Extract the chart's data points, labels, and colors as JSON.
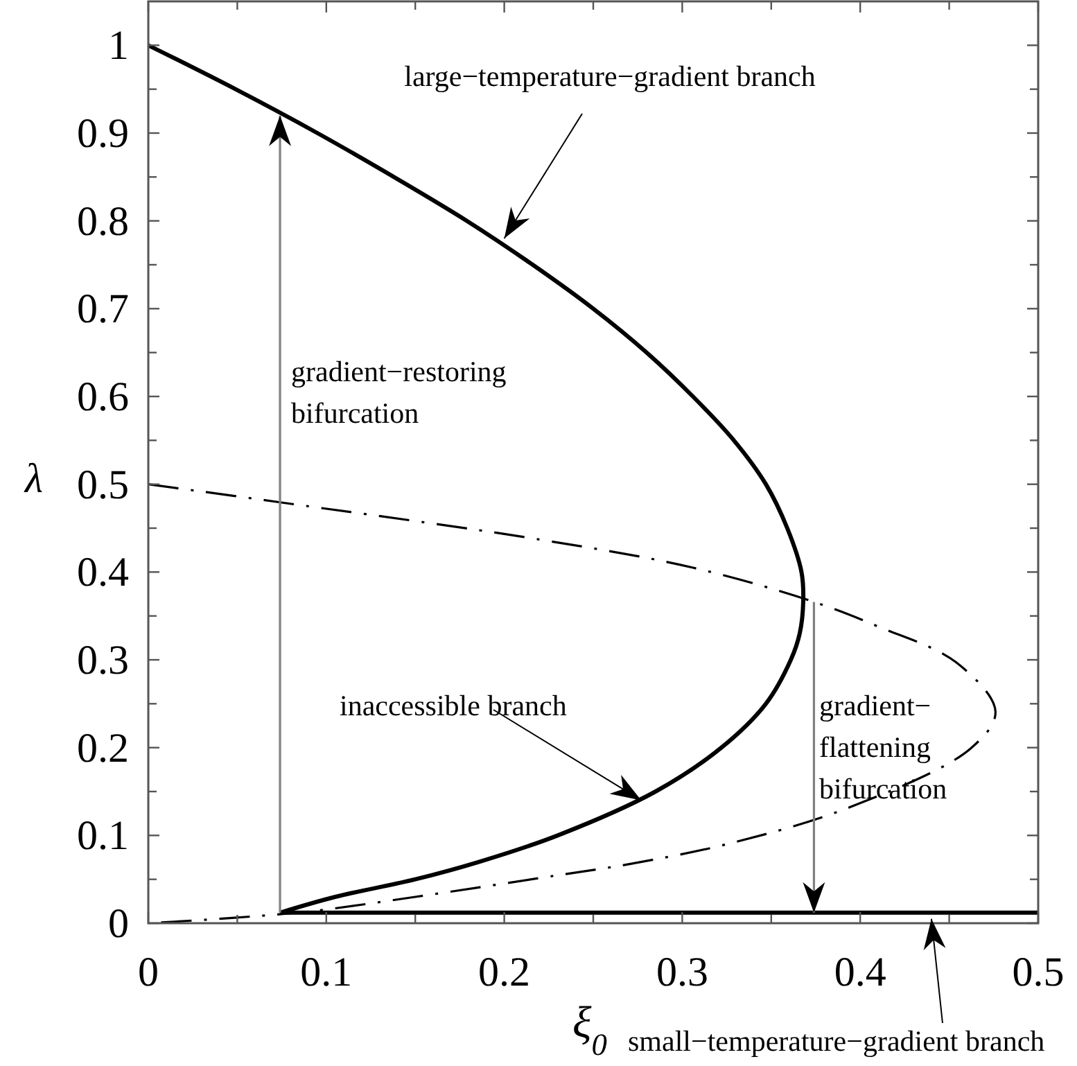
{
  "chart_data": {
    "type": "line",
    "xlabel": "ξ$_{0}$",
    "ylabel": "λ",
    "xlim": [
      0,
      0.5
    ],
    "ylim": [
      0,
      1.05
    ],
    "xticks": [
      0,
      {
        "value": 0.05,
        "label": null
      },
      0.1,
      {
        "value": 0.15,
        "label": null
      },
      0.2,
      {
        "value": 0.25,
        "label": null
      },
      0.3,
      {
        "value": 0.35,
        "label": null
      },
      0.4,
      {
        "value": 0.45,
        "label": null
      },
      0.5
    ],
    "yticks": [
      0,
      {
        "value": 0.05,
        "label": null
      },
      0.1,
      {
        "value": 0.15,
        "label": null
      },
      0.2,
      {
        "value": 0.25,
        "label": null
      },
      0.3,
      {
        "value": 0.35,
        "label": null
      },
      0.4,
      {
        "value": 0.45,
        "label": null
      },
      0.5,
      {
        "value": 0.55,
        "label": null
      },
      0.6,
      {
        "value": 0.65,
        "label": null
      },
      0.7,
      {
        "value": 0.75,
        "label": null
      },
      0.8,
      {
        "value": 0.85,
        "label": null
      },
      0.9,
      {
        "value": 0.95,
        "label": null
      },
      1
    ],
    "grid": false,
    "series": [
      {
        "color": "#000000",
        "line_style": "solid",
        "x": [
          0,
          0.049,
          0.095,
          0.138,
          0.179,
          0.216,
          0.25,
          0.28,
          0.306,
          0.329,
          0.347,
          0.359,
          0.367,
          0.368,
          0.366,
          0.361,
          0.347,
          0.322,
          0.285,
          0.23,
          0.186,
          0.15,
          0.105,
          0.074
        ],
        "values": [
          1,
          0.95,
          0.9,
          0.85,
          0.8,
          0.75,
          0.7,
          0.65,
          0.6,
          0.55,
          0.5,
          0.45,
          0.4,
          0.367,
          0.33,
          0.3,
          0.25,
          0.2,
          0.15,
          0.1,
          0.07,
          0.05,
          0.03,
          0.012
        ]
      },
      {
        "color": "#000000",
        "line_style": "solid",
        "x": [
          0.074,
          0.5
        ],
        "values": [
          0.012,
          0.012
        ]
      },
      {
        "color": "#000000",
        "line_style": "dashdot",
        "x": [
          0,
          0.072,
          0.22,
          0.306,
          0.374,
          0.41,
          0.454,
          0.476,
          0.462,
          0.394,
          0.327,
          0.272,
          0.228,
          0.15,
          0.093,
          0.047,
          0
        ],
        "values": [
          0.5,
          0.48,
          0.437,
          0.405,
          0.366,
          0.338,
          0.297,
          0.241,
          0.199,
          0.132,
          0.091,
          0.068,
          0.054,
          0.03,
          0.014,
          0.006,
          0
        ]
      },
      {
        "color": "#808080",
        "line_style": "solid",
        "x": [
          0.074,
          0.074
        ],
        "values": [
          0.012,
          0.92
        ]
      },
      {
        "color": "#808080",
        "line_style": "solid",
        "x": [
          0.374,
          0.374
        ],
        "values": [
          0.366,
          0.012
        ]
      }
    ],
    "annotations": [
      {
        "text": "large−temperature−gradient branch",
        "x": 0.2,
        "y": 0.78
      },
      "gradient−restoring\nbifurcation",
      {
        "text": "inaccessible branch",
        "x": 0.277,
        "y": 0.14
      },
      "gradient−\nflattening\nbifurcation",
      {
        "text": "small−temperature−gradient branch",
        "x": 0.44,
        "y": 0.005
      }
    ]
  }
}
